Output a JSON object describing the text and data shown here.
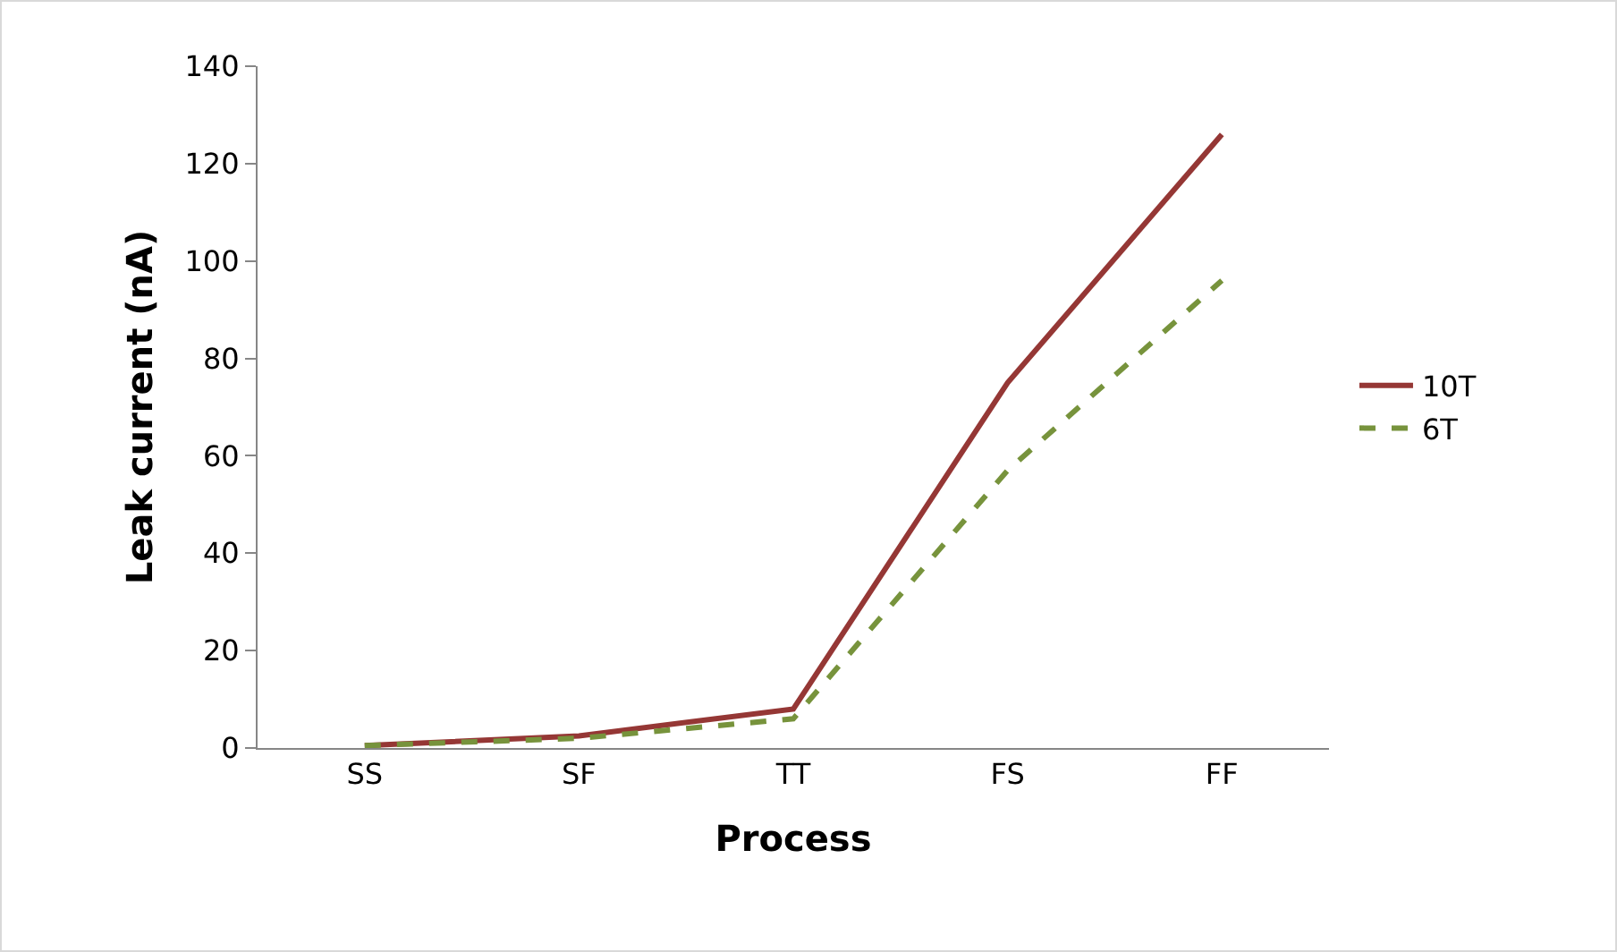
{
  "chart_data": {
    "type": "line",
    "xlabel": "Process",
    "ylabel": "Leak current (nA)",
    "categories": [
      "SS",
      "SF",
      "TT",
      "FS",
      "FF"
    ],
    "series": [
      {
        "name": "10T",
        "color": "#953735",
        "values": [
          0.5,
          2.5,
          8,
          75,
          126
        ],
        "line_style": "solid"
      },
      {
        "name": "6T",
        "color": "#77933c",
        "values": [
          0.5,
          2,
          6,
          57,
          96
        ],
        "line_style": "dashed"
      }
    ],
    "ylim": [
      0,
      140
    ],
    "yticks": [
      0,
      20,
      40,
      60,
      80,
      100,
      120,
      140
    ],
    "grid": false,
    "legend": "right",
    "marker": "none"
  }
}
